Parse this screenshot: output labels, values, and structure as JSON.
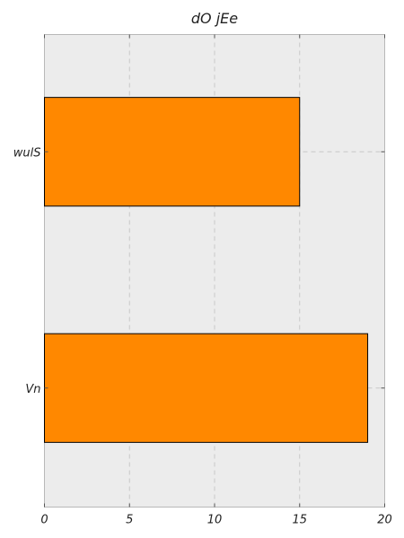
{
  "chart_data": {
    "type": "bar",
    "orientation": "horizontal",
    "title": "dO jEe",
    "xlabel": "",
    "ylabel": "",
    "categories": [
      "wulS",
      "Vn"
    ],
    "values": [
      15,
      19
    ],
    "xlim": [
      0,
      20
    ],
    "xticks": [
      "0",
      "5",
      "10",
      "15",
      "20"
    ],
    "grid": true,
    "bar_color": "#ff8800",
    "background_color": "#ececec"
  }
}
